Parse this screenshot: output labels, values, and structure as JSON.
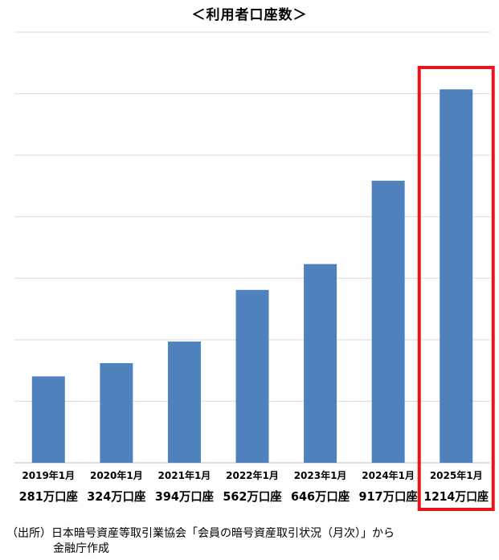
{
  "chart_data": {
    "type": "bar",
    "title": "＜利用者口座数＞",
    "categories": [
      "2019年1月",
      "2020年1月",
      "2021年1月",
      "2022年1月",
      "2023年1月",
      "2024年1月",
      "2025年1月"
    ],
    "values": [
      281,
      324,
      394,
      562,
      646,
      917,
      1214
    ],
    "value_labels": [
      "281万口座",
      "324万口座",
      "394万口座",
      "562万口座",
      "646万口座",
      "917万口座",
      "1214万口座"
    ],
    "unit": "万口座",
    "ylim": [
      0,
      1400
    ],
    "grid": true,
    "bar_color": "#4f81bd",
    "highlight": {
      "category": "2025年1月",
      "color": "#e8141b"
    }
  },
  "source": {
    "line1": "（出所）日本暗号資産等取引業協会「会員の暗号資産取引状況（月次）」から",
    "line2": "金融庁作成"
  }
}
